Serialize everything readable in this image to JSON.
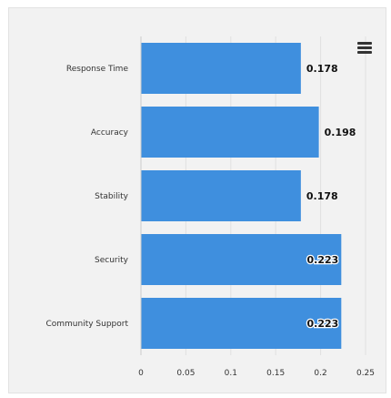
{
  "chart_data": {
    "type": "bar",
    "orientation": "horizontal",
    "categories": [
      "Response Time",
      "Accuracy",
      "Stability",
      "Security",
      "Community Support"
    ],
    "values": [
      0.178,
      0.198,
      0.178,
      0.223,
      0.223
    ],
    "value_labels": [
      "0.178",
      "0.198",
      "0.178",
      "0.223",
      "0.223"
    ],
    "x_ticks": [
      "0",
      "0.05",
      "0.1",
      "0.15",
      "0.2",
      "0.25"
    ],
    "xlim": [
      0,
      0.25
    ],
    "title": "",
    "xlabel": "",
    "ylabel": "",
    "grid": true,
    "legend": "none",
    "colors": {
      "bar": "#3f8fde",
      "background": "#f2f2f2",
      "grid": "#e0e0e0"
    }
  },
  "toolbar": {
    "menu_icon": "hamburger-menu-icon"
  }
}
